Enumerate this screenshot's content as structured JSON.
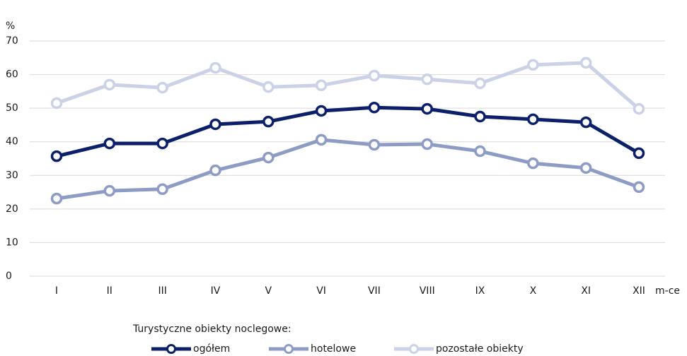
{
  "chart_data": {
    "type": "line",
    "y_axis_label": "%",
    "x_axis_label": "m-ce",
    "categories": [
      "I",
      "II",
      "III",
      "IV",
      "V",
      "VI",
      "VII",
      "VIII",
      "IX",
      "X",
      "XI",
      "XII"
    ],
    "series": [
      {
        "name": "ogółem",
        "color": "#0b1f6b",
        "values": [
          35.7,
          39.5,
          39.5,
          45.2,
          46,
          49.2,
          50.2,
          49.8,
          47.5,
          46.7,
          45.8,
          36.6
        ]
      },
      {
        "name": "hotelowe",
        "color": "#8d9cc4",
        "values": [
          23.1,
          25.4,
          25.9,
          31.5,
          35.3,
          40.6,
          39.1,
          39.3,
          37.2,
          33.6,
          32.2,
          26.5
        ]
      },
      {
        "name": "pozostałe obiekty",
        "color": "#cbd1e6",
        "values": [
          51.5,
          57,
          56.1,
          62,
          56.3,
          56.8,
          59.7,
          58.6,
          57.4,
          62.9,
          63.5,
          49.8
        ]
      }
    ],
    "ylim": [
      0,
      70
    ],
    "yticks": [
      0,
      10,
      20,
      30,
      40,
      50,
      60,
      70
    ],
    "grid": true,
    "legend_title": "Turystyczne obiekty noclegowe:",
    "legend": "bottom"
  }
}
